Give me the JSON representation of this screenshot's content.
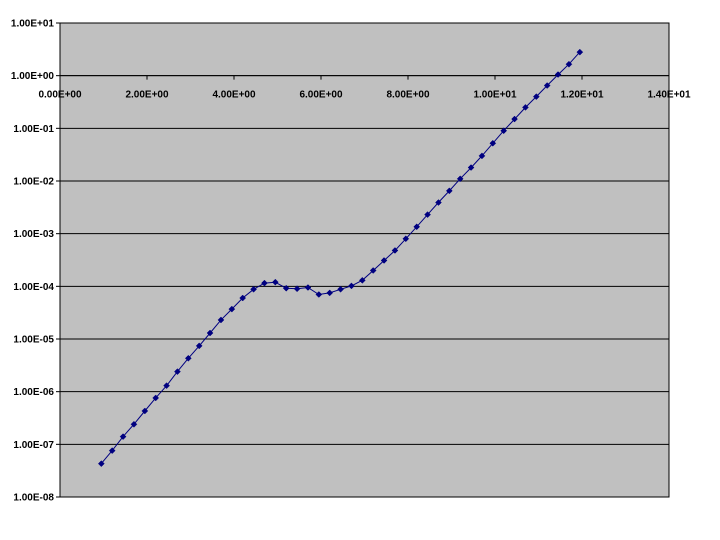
{
  "chart_data": {
    "type": "line",
    "title": "",
    "xlabel": "",
    "ylabel": "",
    "y_scale": "log",
    "xlim": [
      0,
      14
    ],
    "ylim": [
      1e-08,
      10
    ],
    "x_axis_crosses_y_at": 1,
    "grid": {
      "horizontal": true,
      "vertical": false
    },
    "colors": {
      "plot_area": "#c0c0c0",
      "series": "#000080",
      "gridline": "#000000"
    },
    "x_tick_labels": [
      "0.00E+00",
      "2.00E+00",
      "4.00E+00",
      "6.00E+00",
      "8.00E+00",
      "1.00E+01",
      "1.20E+01",
      "1.40E+01"
    ],
    "x_tick_values": [
      0,
      2,
      4,
      6,
      8,
      10,
      12,
      14
    ],
    "y_tick_labels": [
      "1.00E+01",
      "1.00E+00",
      "1.00E-01",
      "1.00E-02",
      "1.00E-03",
      "1.00E-04",
      "1.00E-05",
      "1.00E-06",
      "1.00E-07",
      "1.00E-08"
    ],
    "y_tick_values": [
      10,
      1,
      0.1,
      0.01,
      0.001,
      0.0001,
      1e-05,
      1e-06,
      1e-07,
      1e-08
    ],
    "series": [
      {
        "marker": "diamond",
        "x": [
          0.95,
          1.2,
          1.45,
          1.7,
          1.95,
          2.2,
          2.45,
          2.7,
          2.95,
          3.2,
          3.45,
          3.7,
          3.95,
          4.2,
          4.45,
          4.7,
          4.95,
          5.2,
          5.45,
          5.7,
          5.95,
          6.2,
          6.45,
          6.7,
          6.95,
          7.2,
          7.45,
          7.7,
          7.95,
          8.2,
          8.45,
          8.7,
          8.95,
          9.2,
          9.45,
          9.7,
          9.95,
          10.2,
          10.45,
          10.7,
          10.95,
          11.2,
          11.45,
          11.7,
          11.95
        ],
        "y": [
          4.3e-08,
          7.6e-08,
          1.4e-07,
          2.4e-07,
          4.3e-07,
          7.6e-07,
          1.3e-06,
          2.4e-06,
          4.3e-06,
          7.4e-06,
          1.3e-05,
          2.3e-05,
          3.7e-05,
          6e-05,
          8.8e-05,
          0.000115,
          0.00012,
          9.2e-05,
          9e-05,
          9.5e-05,
          7e-05,
          7.5e-05,
          8.8e-05,
          0.000102,
          0.00013,
          0.0002,
          0.00031,
          0.00048,
          0.0008,
          0.00135,
          0.0023,
          0.0039,
          0.0065,
          0.011,
          0.018,
          0.03,
          0.052,
          0.09,
          0.15,
          0.25,
          0.4,
          0.65,
          1.05,
          1.65,
          2.8
        ]
      }
    ]
  }
}
